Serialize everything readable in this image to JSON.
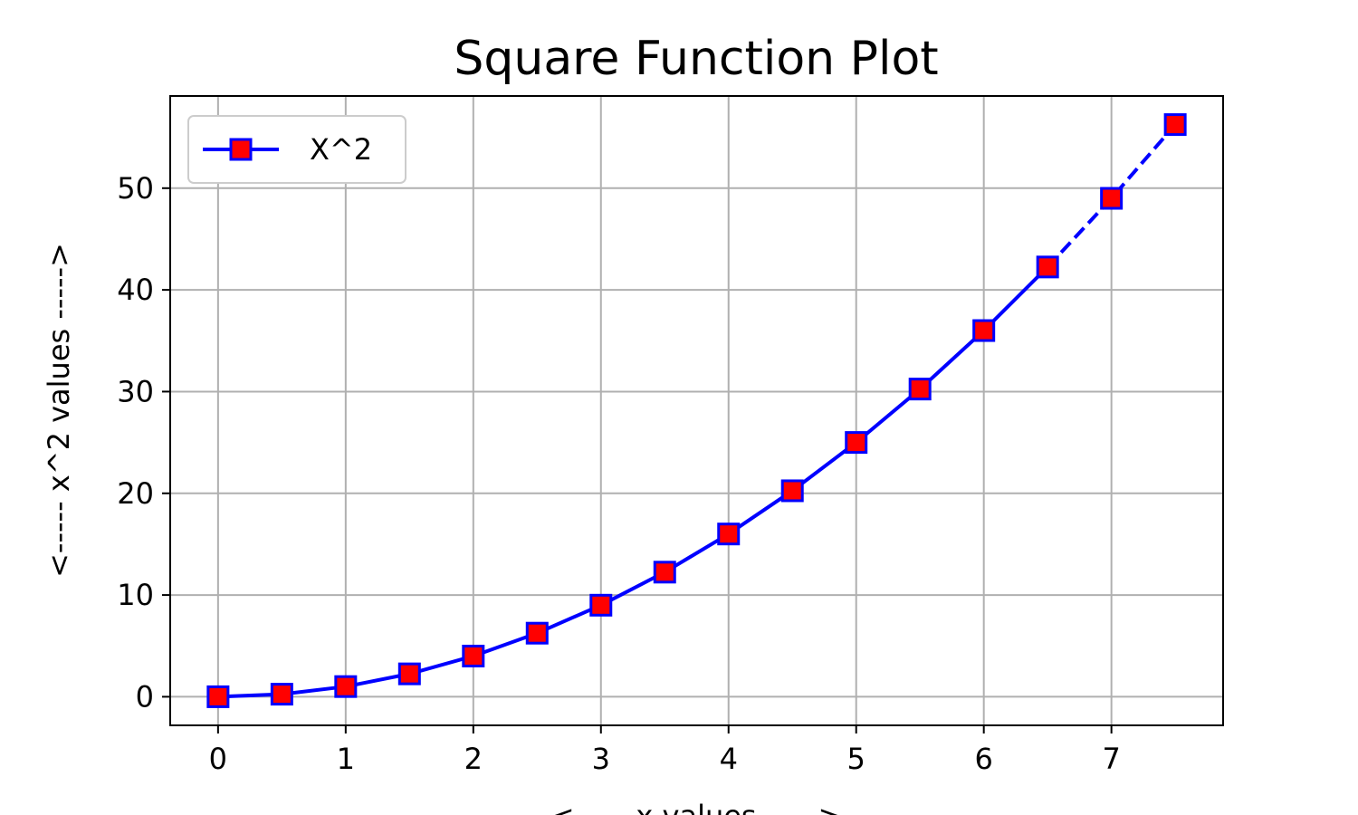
{
  "chart_data": {
    "type": "line",
    "title": "Square Function Plot",
    "xlabel": "<-----    x values    ----->",
    "ylabel": "<-----    x^2 values    ----->",
    "xlim": [
      -0.375,
      7.875
    ],
    "ylim": [
      -2.8125,
      59.0625
    ],
    "xticks": [
      0,
      1,
      2,
      3,
      4,
      5,
      6,
      7
    ],
    "yticks": [
      0,
      10,
      20,
      30,
      40,
      50
    ],
    "grid": true,
    "legend_position": "top-left",
    "series": [
      {
        "name": "X^2",
        "color": "#0000ff",
        "marker": "square",
        "marker_fill": "#ff0000",
        "marker_edge": "#0000ff",
        "solid_until_x": 6.5,
        "dashed_after": true,
        "x": [
          0,
          0.5,
          1,
          1.5,
          2,
          2.5,
          3,
          3.5,
          4,
          4.5,
          5,
          5.5,
          6,
          6.5,
          7,
          7.5
        ],
        "y": [
          0,
          0.25,
          1,
          2.25,
          4,
          6.25,
          9,
          12.25,
          16,
          20.25,
          25,
          30.25,
          36,
          42.25,
          49,
          56.25
        ]
      }
    ]
  }
}
